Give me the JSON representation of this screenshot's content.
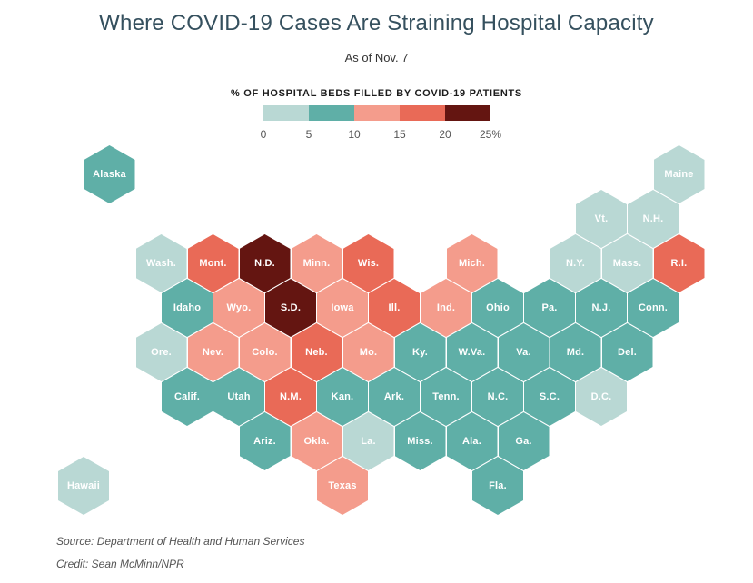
{
  "title": "Where COVID-19 Cases Are Straining Hospital Capacity",
  "subtitle": "As of Nov. 7",
  "legend": {
    "title": "% OF HOSPITAL BEDS FILLED BY COVID-19 PATIENTS",
    "tick_labels": [
      "0",
      "5",
      "10",
      "15",
      "20",
      "25%"
    ],
    "colors": [
      "#b9d8d4",
      "#5fafa7",
      "#f49c8c",
      "#e96a57",
      "#641511"
    ]
  },
  "source": "Source: Department of Health and Human Services",
  "credit": "Credit: Sean McMinn/NPR",
  "chart_data": {
    "type": "hex-cartogram",
    "title": "Where COVID-19 Cases Are Straining Hospital Capacity",
    "as_of": "As of Nov. 7",
    "metric": "% of hospital beds filled by COVID-19 patients",
    "legend_thresholds": [
      0,
      5,
      10,
      15,
      20,
      25
    ],
    "bins": [
      "0-5",
      "5-10",
      "10-15",
      "15-20",
      "20-25"
    ],
    "bin_colors": [
      "#b9d8d4",
      "#5fafa7",
      "#f49c8c",
      "#e96a57",
      "#641511"
    ],
    "states": [
      {
        "label": "Alaska",
        "row": 0,
        "col": 1,
        "bin": 1,
        "range": "5-10"
      },
      {
        "label": "Maine",
        "row": 0,
        "col": 23,
        "bin": 0,
        "range": "0-5"
      },
      {
        "label": "Vt.",
        "row": 1,
        "col": 20,
        "bin": 0,
        "range": "0-5"
      },
      {
        "label": "N.H.",
        "row": 1,
        "col": 22,
        "bin": 0,
        "range": "0-5"
      },
      {
        "label": "Wash.",
        "row": 2,
        "col": 3,
        "bin": 0,
        "range": "0-5"
      },
      {
        "label": "Mont.",
        "row": 2,
        "col": 5,
        "bin": 3,
        "range": "15-20"
      },
      {
        "label": "N.D.",
        "row": 2,
        "col": 7,
        "bin": 4,
        "range": "20-25"
      },
      {
        "label": "Minn.",
        "row": 2,
        "col": 9,
        "bin": 2,
        "range": "10-15"
      },
      {
        "label": "Wis.",
        "row": 2,
        "col": 11,
        "bin": 3,
        "range": "15-20"
      },
      {
        "label": "Mich.",
        "row": 2,
        "col": 15,
        "bin": 2,
        "range": "10-15"
      },
      {
        "label": "N.Y.",
        "row": 2,
        "col": 19,
        "bin": 0,
        "range": "0-5"
      },
      {
        "label": "Mass.",
        "row": 2,
        "col": 21,
        "bin": 0,
        "range": "0-5"
      },
      {
        "label": "R.I.",
        "row": 2,
        "col": 23,
        "bin": 3,
        "range": "15-20"
      },
      {
        "label": "Idaho",
        "row": 3,
        "col": 4,
        "bin": 1,
        "range": "5-10"
      },
      {
        "label": "Wyo.",
        "row": 3,
        "col": 6,
        "bin": 2,
        "range": "10-15"
      },
      {
        "label": "S.D.",
        "row": 3,
        "col": 8,
        "bin": 4,
        "range": "20-25"
      },
      {
        "label": "Iowa",
        "row": 3,
        "col": 10,
        "bin": 2,
        "range": "10-15"
      },
      {
        "label": "Ill.",
        "row": 3,
        "col": 12,
        "bin": 3,
        "range": "15-20"
      },
      {
        "label": "Ind.",
        "row": 3,
        "col": 14,
        "bin": 2,
        "range": "10-15"
      },
      {
        "label": "Ohio",
        "row": 3,
        "col": 16,
        "bin": 1,
        "range": "5-10"
      },
      {
        "label": "Pa.",
        "row": 3,
        "col": 18,
        "bin": 1,
        "range": "5-10"
      },
      {
        "label": "N.J.",
        "row": 3,
        "col": 20,
        "bin": 1,
        "range": "5-10"
      },
      {
        "label": "Conn.",
        "row": 3,
        "col": 22,
        "bin": 1,
        "range": "5-10"
      },
      {
        "label": "Ore.",
        "row": 4,
        "col": 3,
        "bin": 0,
        "range": "0-5"
      },
      {
        "label": "Nev.",
        "row": 4,
        "col": 5,
        "bin": 2,
        "range": "10-15"
      },
      {
        "label": "Colo.",
        "row": 4,
        "col": 7,
        "bin": 2,
        "range": "10-15"
      },
      {
        "label": "Neb.",
        "row": 4,
        "col": 9,
        "bin": 3,
        "range": "15-20"
      },
      {
        "label": "Mo.",
        "row": 4,
        "col": 11,
        "bin": 2,
        "range": "10-15"
      },
      {
        "label": "Ky.",
        "row": 4,
        "col": 13,
        "bin": 1,
        "range": "5-10"
      },
      {
        "label": "W.Va.",
        "row": 4,
        "col": 15,
        "bin": 1,
        "range": "5-10"
      },
      {
        "label": "Va.",
        "row": 4,
        "col": 17,
        "bin": 1,
        "range": "5-10"
      },
      {
        "label": "Md.",
        "row": 4,
        "col": 19,
        "bin": 1,
        "range": "5-10"
      },
      {
        "label": "Del.",
        "row": 4,
        "col": 21,
        "bin": 1,
        "range": "5-10"
      },
      {
        "label": "Calif.",
        "row": 5,
        "col": 4,
        "bin": 1,
        "range": "5-10"
      },
      {
        "label": "Utah",
        "row": 5,
        "col": 6,
        "bin": 1,
        "range": "5-10"
      },
      {
        "label": "N.M.",
        "row": 5,
        "col": 8,
        "bin": 3,
        "range": "15-20"
      },
      {
        "label": "Kan.",
        "row": 5,
        "col": 10,
        "bin": 1,
        "range": "5-10"
      },
      {
        "label": "Ark.",
        "row": 5,
        "col": 12,
        "bin": 1,
        "range": "5-10"
      },
      {
        "label": "Tenn.",
        "row": 5,
        "col": 14,
        "bin": 1,
        "range": "5-10"
      },
      {
        "label": "N.C.",
        "row": 5,
        "col": 16,
        "bin": 1,
        "range": "5-10"
      },
      {
        "label": "S.C.",
        "row": 5,
        "col": 18,
        "bin": 1,
        "range": "5-10"
      },
      {
        "label": "D.C.",
        "row": 5,
        "col": 20,
        "bin": 0,
        "range": "0-5"
      },
      {
        "label": "Ariz.",
        "row": 6,
        "col": 7,
        "bin": 1,
        "range": "5-10"
      },
      {
        "label": "Okla.",
        "row": 6,
        "col": 9,
        "bin": 2,
        "range": "10-15"
      },
      {
        "label": "La.",
        "row": 6,
        "col": 11,
        "bin": 0,
        "range": "0-5"
      },
      {
        "label": "Miss.",
        "row": 6,
        "col": 13,
        "bin": 1,
        "range": "5-10"
      },
      {
        "label": "Ala.",
        "row": 6,
        "col": 15,
        "bin": 1,
        "range": "5-10"
      },
      {
        "label": "Ga.",
        "row": 6,
        "col": 17,
        "bin": 1,
        "range": "5-10"
      },
      {
        "label": "Hawaii",
        "row": 7,
        "col": 0,
        "bin": 0,
        "range": "0-5"
      },
      {
        "label": "Texas",
        "row": 7,
        "col": 10,
        "bin": 2,
        "range": "10-15"
      },
      {
        "label": "Fla.",
        "row": 7,
        "col": 16,
        "bin": 1,
        "range": "5-10"
      }
    ]
  }
}
